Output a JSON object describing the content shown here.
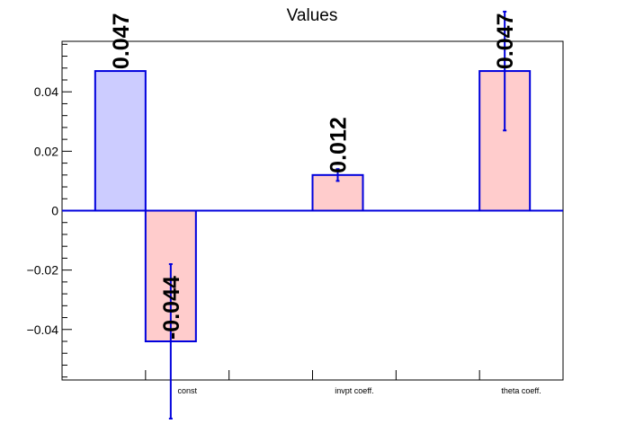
{
  "chart_data": {
    "type": "bar",
    "title": "Values",
    "xlabel": "",
    "ylabel": "",
    "categories": [
      "const",
      "invpt coeff.",
      "theta coeff."
    ],
    "ylim": [
      -0.057,
      0.057
    ],
    "yticks": [
      -0.04,
      -0.02,
      0,
      0.02,
      0.04
    ],
    "ytick_labels": [
      "−0.04",
      "−0.02",
      "0",
      "0.02",
      "0.04"
    ],
    "grid": false,
    "series": [
      {
        "color": "#ccccff",
        "values": [
          0.047,
          null,
          null
        ],
        "errors": [
          0,
          null,
          null
        ],
        "labels": [
          "0.047",
          "",
          ""
        ]
      },
      {
        "color": "#ffcccc",
        "values": [
          -0.044,
          0.012,
          0.047
        ],
        "errors": [
          0.026,
          0.002,
          0.02
        ],
        "labels": [
          "-0.044",
          "0.012",
          "0.047"
        ]
      }
    ],
    "bar_edge_color": "#0000dd"
  }
}
